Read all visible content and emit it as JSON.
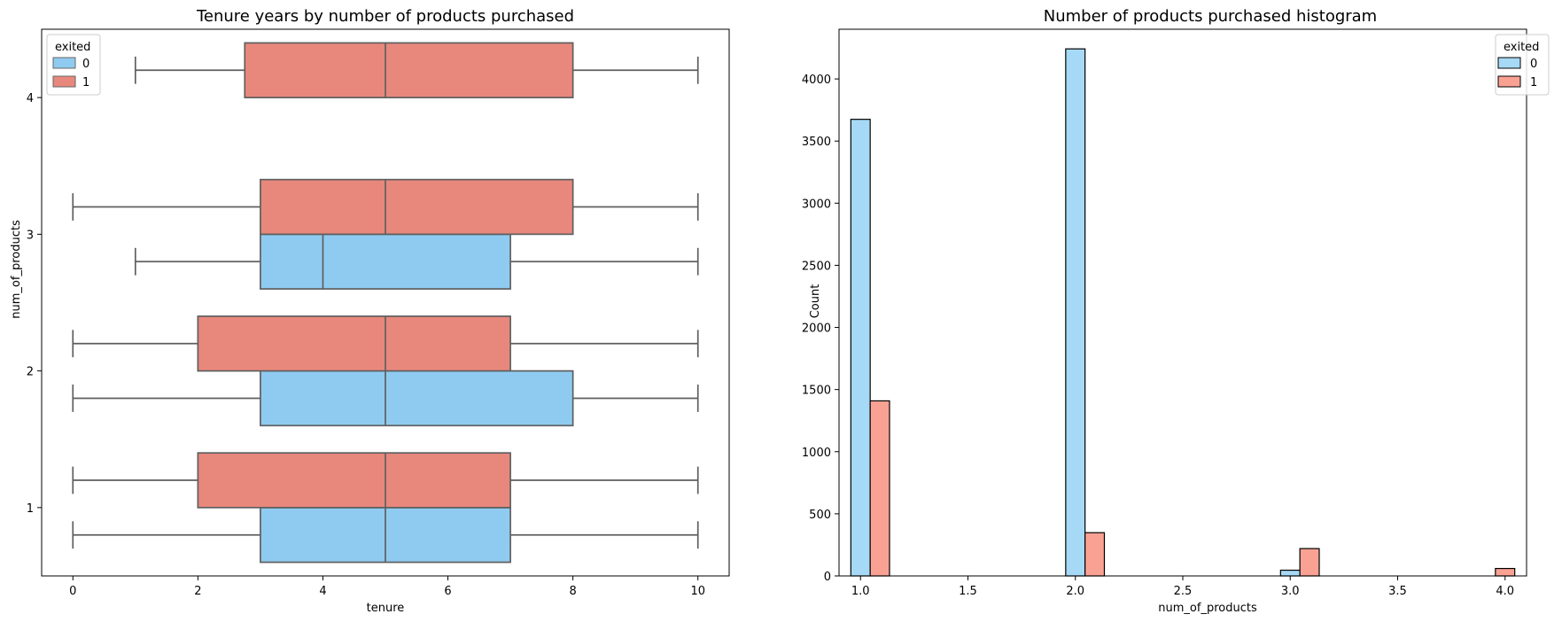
{
  "chart_data": [
    {
      "type": "boxplot",
      "title": "Tenure years by number of products purchased",
      "xlabel": "tenure",
      "ylabel": "num_of_products",
      "orientation": "horizontal",
      "xlim": [
        -0.5,
        10.5
      ],
      "xticks": [
        0,
        2,
        4,
        6,
        8,
        10
      ],
      "categories": [
        "4",
        "3",
        "2",
        "1"
      ],
      "legend": {
        "title": "exited",
        "position": "top-left",
        "entries": [
          "0",
          "1"
        ]
      },
      "series": [
        {
          "name": "0",
          "color": "#8FCBF0",
          "boxes": [
            {
              "category": "3",
              "whislo": 1,
              "q1": 3,
              "med": 4,
              "q3": 7,
              "whishi": 10
            },
            {
              "category": "2",
              "whislo": 0,
              "q1": 3,
              "med": 5,
              "q3": 8,
              "whishi": 10
            },
            {
              "category": "1",
              "whislo": 0,
              "q1": 3,
              "med": 5,
              "q3": 7,
              "whishi": 10
            }
          ]
        },
        {
          "name": "1",
          "color": "#E8887C",
          "boxes": [
            {
              "category": "4",
              "whislo": 1,
              "q1": 2.75,
              "med": 5,
              "q3": 8,
              "whishi": 10
            },
            {
              "category": "3",
              "whislo": 0,
              "q1": 3,
              "med": 5,
              "q3": 8,
              "whishi": 10
            },
            {
              "category": "2",
              "whislo": 0,
              "q1": 2,
              "med": 5,
              "q3": 7,
              "whishi": 10
            },
            {
              "category": "1",
              "whislo": 0,
              "q1": 2,
              "med": 5,
              "q3": 7,
              "whishi": 10
            }
          ]
        }
      ]
    },
    {
      "type": "bar",
      "title": "Number of products purchased histogram",
      "xlabel": "num_of_products",
      "ylabel": "Count",
      "xlim": [
        0.9,
        4.1
      ],
      "ylim": [
        0,
        4400
      ],
      "xticks": [
        "1.0",
        "1.5",
        "2.0",
        "2.5",
        "3.0",
        "3.5",
        "4.0"
      ],
      "yticks": [
        0,
        500,
        1000,
        1500,
        2000,
        2500,
        3000,
        3500,
        4000
      ],
      "legend": {
        "title": "exited",
        "position": "top-right",
        "entries": [
          "0",
          "1"
        ]
      },
      "series": [
        {
          "name": "0",
          "color": "#A6D9F5",
          "bars": [
            {
              "x0": 0.955,
              "x1": 1.045,
              "value": 3675
            },
            {
              "x0": 1.955,
              "x1": 2.045,
              "value": 4242
            },
            {
              "x0": 2.955,
              "x1": 3.045,
              "value": 46
            },
            {
              "x0": 3.955,
              "x1": 4.045,
              "value": 0
            }
          ]
        },
        {
          "name": "1",
          "color": "#F9A293",
          "bars": [
            {
              "x0": 1.045,
              "x1": 1.135,
              "value": 1409
            },
            {
              "x0": 2.045,
              "x1": 2.135,
              "value": 348
            },
            {
              "x0": 3.045,
              "x1": 3.135,
              "value": 220
            },
            {
              "x0": 3.955,
              "x1": 4.045,
              "value": 60
            }
          ]
        }
      ]
    }
  ]
}
